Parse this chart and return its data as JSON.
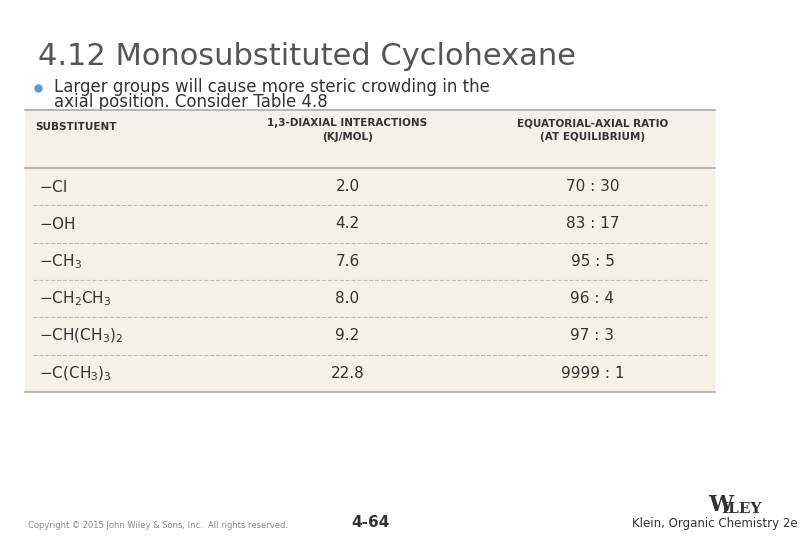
{
  "title": "4.12 Monosubstituted Cyclohexane",
  "bullet_line1": "Larger groups will cause more steric crowding in the",
  "bullet_line2": "axial position. Consider Table 4.8",
  "table_bg": "#f5f0e8",
  "slide_bg": "#ffffff",
  "header_col1": "SUBSTITUENT",
  "header_col2a": "1,3-DIAXIAL INTERACTIONS",
  "header_col2b": "(KJ/MOL)",
  "header_col3a": "EQUATORIAL-AXIAL RATIO",
  "header_col3b": "(AT EQUILIBRIUM)",
  "rows_col2": [
    "2.0",
    "4.2",
    "7.6",
    "8.0",
    "9.2",
    "22.8"
  ],
  "rows_col3": [
    "70 : 30",
    "83 : 17",
    "95 : 5",
    "96 : 4",
    "97 : 3",
    "9999 : 1"
  ],
  "title_color": "#555555",
  "bullet_color": "#5b9bd5",
  "text_color": "#333333",
  "header_text_color": "#333333",
  "table_border_color": "#aaaaaa",
  "row_divider_color": "#bbbbbb",
  "footer_left": "Copyright © 2015 John Wiley & Sons, Inc.  All rights reserved.",
  "footer_center": "4-64",
  "footer_right_top": "Wiley",
  "footer_right_bottom": "Klein, Organic Chemistry 2e"
}
